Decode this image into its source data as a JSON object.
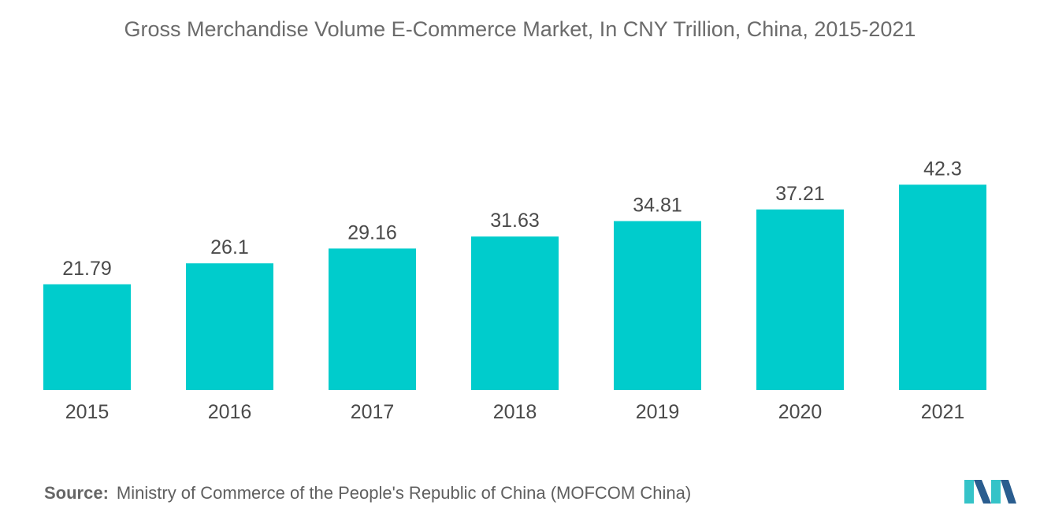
{
  "chart_data": {
    "type": "bar",
    "title": "Gross Merchandise Volume E-Commerce Market, In CNY Trillion, China, 2015-2021",
    "categories": [
      "2015",
      "2016",
      "2017",
      "2018",
      "2019",
      "2020",
      "2021"
    ],
    "values": [
      21.79,
      26.1,
      29.16,
      31.63,
      34.81,
      37.21,
      42.3
    ],
    "value_labels": [
      "21.79",
      "26.1",
      "29.16",
      "31.63",
      "34.81",
      "37.21",
      "42.3"
    ],
    "xlabel": "",
    "ylabel": "",
    "ylim": [
      0,
      48
    ],
    "grid": false,
    "legend": "none",
    "bar_color": "#00cccc"
  },
  "source": {
    "label": "Source:",
    "text": "Ministry of Commerce of the People's Republic of China (MOFCOM China)"
  },
  "colors": {
    "bar": "#00cccc",
    "logo_dark": "#2a5d8f",
    "logo_light": "#35c3c8"
  }
}
